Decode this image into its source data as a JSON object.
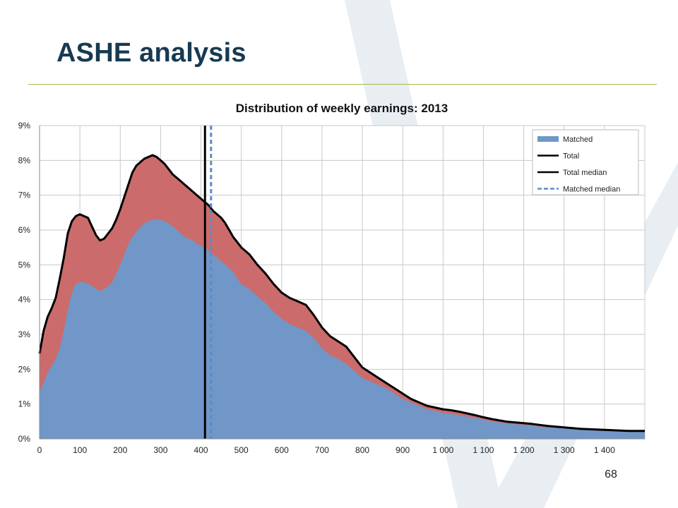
{
  "slide": {
    "title": "ASHE analysis",
    "page_number": "68"
  },
  "colors": {
    "title": "#173a52",
    "rule": "#a4ba4f",
    "matched_fill": "#7097c8",
    "total_fill": "#cc6b6b",
    "total_line": "#000000",
    "matched_median_line": "#5b8cc8",
    "grid": "#c8c8c8"
  },
  "chart_data": {
    "type": "area",
    "title": "Distribution of weekly earnings: 2013",
    "xlabel": "",
    "ylabel": "",
    "xlim": [
      0,
      1500
    ],
    "ylim": [
      0,
      9
    ],
    "x_ticks": [
      0,
      100,
      200,
      300,
      400,
      500,
      600,
      700,
      800,
      900,
      1000,
      1100,
      1200,
      1300,
      1400
    ],
    "x_tick_labels": [
      "0",
      "100",
      "200",
      "300",
      "400",
      "500",
      "600",
      "700",
      "800",
      "900",
      "1 000",
      "1 100",
      "1 200",
      "1 300",
      "1 400"
    ],
    "y_ticks": [
      0,
      1,
      2,
      3,
      4,
      5,
      6,
      7,
      8,
      9
    ],
    "y_tick_labels": [
      "0%",
      "1%",
      "2%",
      "3%",
      "4%",
      "5%",
      "6%",
      "7%",
      "8%",
      "9%"
    ],
    "grid": true,
    "legend_position": "top-right",
    "legend": [
      {
        "label": "Matched",
        "style": "area"
      },
      {
        "label": "Total",
        "style": "line"
      },
      {
        "label": "Total median",
        "style": "line"
      },
      {
        "label": "Matched median",
        "style": "dashed"
      }
    ],
    "x": [
      0,
      10,
      20,
      30,
      40,
      50,
      60,
      70,
      80,
      90,
      100,
      110,
      120,
      130,
      140,
      150,
      160,
      170,
      180,
      190,
      200,
      210,
      220,
      230,
      240,
      250,
      260,
      270,
      280,
      290,
      300,
      310,
      320,
      330,
      340,
      350,
      360,
      370,
      380,
      390,
      400,
      410,
      420,
      430,
      440,
      450,
      460,
      470,
      480,
      490,
      500,
      520,
      540,
      560,
      580,
      600,
      620,
      640,
      660,
      680,
      700,
      720,
      740,
      760,
      780,
      800,
      820,
      840,
      860,
      880,
      900,
      920,
      940,
      960,
      980,
      1000,
      1020,
      1040,
      1060,
      1080,
      1100,
      1120,
      1140,
      1160,
      1180,
      1200,
      1220,
      1240,
      1260,
      1280,
      1300,
      1320,
      1340,
      1360,
      1380,
      1400,
      1420,
      1440,
      1460,
      1480,
      1500
    ],
    "series": [
      {
        "name": "Matched",
        "values": [
          1.35,
          1.6,
          1.9,
          2.1,
          2.3,
          2.6,
          3.1,
          3.7,
          4.2,
          4.45,
          4.5,
          4.5,
          4.45,
          4.4,
          4.3,
          4.25,
          4.3,
          4.4,
          4.5,
          4.75,
          5.0,
          5.3,
          5.6,
          5.8,
          5.95,
          6.1,
          6.2,
          6.25,
          6.3,
          6.3,
          6.3,
          6.25,
          6.2,
          6.1,
          6.0,
          5.9,
          5.8,
          5.75,
          5.7,
          5.6,
          5.55,
          5.5,
          5.4,
          5.3,
          5.2,
          5.1,
          5.0,
          4.9,
          4.8,
          4.6,
          4.45,
          4.3,
          4.1,
          3.9,
          3.65,
          3.45,
          3.3,
          3.2,
          3.1,
          2.9,
          2.6,
          2.4,
          2.3,
          2.15,
          1.95,
          1.75,
          1.65,
          1.55,
          1.45,
          1.3,
          1.15,
          1.05,
          0.95,
          0.85,
          0.8,
          0.75,
          0.72,
          0.68,
          0.64,
          0.6,
          0.55,
          0.5,
          0.47,
          0.44,
          0.42,
          0.4,
          0.38,
          0.35,
          0.33,
          0.32,
          0.3,
          0.28,
          0.26,
          0.25,
          0.24,
          0.23,
          0.22,
          0.21,
          0.2,
          0.2,
          0.2
        ]
      },
      {
        "name": "Total",
        "values": [
          2.45,
          3.1,
          3.5,
          3.75,
          4.05,
          4.6,
          5.2,
          5.9,
          6.25,
          6.4,
          6.45,
          6.4,
          6.35,
          6.1,
          5.85,
          5.7,
          5.75,
          5.9,
          6.05,
          6.3,
          6.6,
          6.95,
          7.3,
          7.65,
          7.85,
          7.95,
          8.05,
          8.1,
          8.15,
          8.1,
          8.0,
          7.9,
          7.75,
          7.6,
          7.5,
          7.4,
          7.3,
          7.2,
          7.1,
          7.0,
          6.9,
          6.8,
          6.7,
          6.55,
          6.45,
          6.35,
          6.2,
          6.0,
          5.8,
          5.65,
          5.5,
          5.3,
          5.0,
          4.75,
          4.45,
          4.2,
          4.05,
          3.95,
          3.85,
          3.55,
          3.2,
          2.95,
          2.8,
          2.65,
          2.35,
          2.05,
          1.9,
          1.75,
          1.6,
          1.45,
          1.3,
          1.15,
          1.05,
          0.95,
          0.9,
          0.85,
          0.82,
          0.78,
          0.73,
          0.68,
          0.62,
          0.57,
          0.53,
          0.49,
          0.47,
          0.45,
          0.43,
          0.4,
          0.37,
          0.35,
          0.33,
          0.31,
          0.29,
          0.28,
          0.27,
          0.26,
          0.25,
          0.24,
          0.23,
          0.23,
          0.23
        ]
      }
    ],
    "total_median": 410,
    "matched_median": 425
  }
}
